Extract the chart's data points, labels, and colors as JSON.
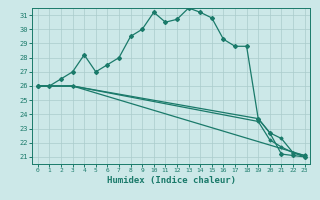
{
  "xlabel": "Humidex (Indice chaleur)",
  "xlim": [
    -0.5,
    23.5
  ],
  "ylim": [
    20.5,
    31.5
  ],
  "xticks": [
    0,
    1,
    2,
    3,
    4,
    5,
    6,
    7,
    8,
    9,
    10,
    11,
    12,
    13,
    14,
    15,
    16,
    17,
    18,
    19,
    20,
    21,
    22,
    23
  ],
  "yticks": [
    21,
    22,
    23,
    24,
    25,
    26,
    27,
    28,
    29,
    30,
    31
  ],
  "background_color": "#cce8e8",
  "grid_color": "#aacccc",
  "line_color": "#1a7a6a",
  "line1_x": [
    0,
    1,
    2,
    3,
    4,
    5,
    6,
    7,
    8,
    9,
    10,
    11,
    12,
    13,
    14,
    15,
    16,
    17,
    18,
    19,
    20,
    21,
    22,
    23
  ],
  "line1_y": [
    26,
    26,
    26.5,
    27,
    28.2,
    27,
    27.5,
    28,
    29.5,
    30,
    31.2,
    30.5,
    30.7,
    31.5,
    31.2,
    30.8,
    29.3,
    28.8,
    28.8,
    23.7,
    22.7,
    21.2,
    21.1,
    21.0
  ],
  "line2_x": [
    0,
    3,
    23
  ],
  "line2_y": [
    26,
    26,
    21.1
  ],
  "line3_x": [
    0,
    3,
    19,
    20,
    21,
    22,
    23
  ],
  "line3_y": [
    26,
    26,
    23.7,
    22.7,
    22.3,
    21.3,
    21.0
  ],
  "line4_x": [
    0,
    3,
    19,
    20,
    21,
    22,
    23
  ],
  "line4_y": [
    26,
    26,
    23.5,
    22.2,
    21.7,
    21.3,
    21.1
  ]
}
